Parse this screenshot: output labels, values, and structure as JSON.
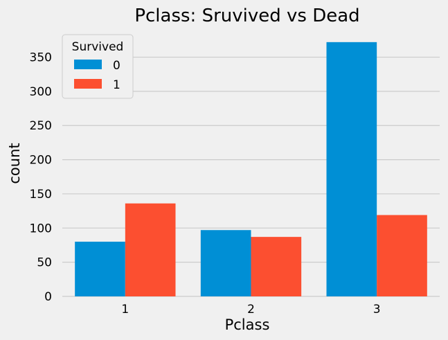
{
  "chart_data": {
    "type": "bar",
    "title": "Pclass: Sruvived vs Dead",
    "xlabel": "Pclass",
    "ylabel": "count",
    "categories": [
      "1",
      "2",
      "3"
    ],
    "series": [
      {
        "name": "0",
        "values": [
          80,
          97,
          372
        ],
        "color": "#008fd5"
      },
      {
        "name": "1",
        "values": [
          136,
          87,
          119
        ],
        "color": "#fc4f30"
      }
    ],
    "ylim": [
      0,
      385
    ],
    "yticks": [
      0,
      50,
      100,
      150,
      200,
      250,
      300,
      350
    ],
    "grid": true,
    "legend": {
      "title": "Survived",
      "position": "top-left"
    }
  }
}
